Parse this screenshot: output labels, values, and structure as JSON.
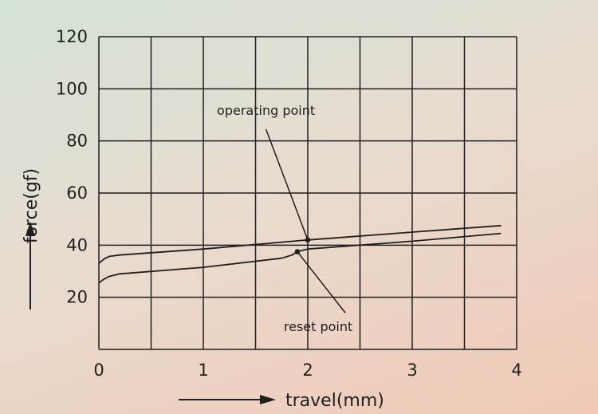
{
  "chart_data": {
    "type": "line",
    "title": "",
    "xlabel": "travel(mm)",
    "ylabel": "force(gf)",
    "xlim": [
      0,
      4
    ],
    "ylim": [
      0,
      120
    ],
    "x_ticks": [
      0,
      1,
      2,
      3,
      4
    ],
    "y_ticks": [
      20,
      40,
      60,
      80,
      100,
      120
    ],
    "x_tick_labels": [
      "0",
      "1",
      "2",
      "3",
      "4"
    ],
    "y_tick_labels": [
      "20",
      "40",
      "60",
      "80",
      "100",
      "120"
    ],
    "grid": true,
    "legend": "none",
    "series": [
      {
        "x": [
          0,
          0.05,
          0.1,
          0.2,
          1.0,
          2.0,
          3.0,
          3.85
        ],
        "y": [
          33,
          34.7,
          35.7,
          36.2,
          38.5,
          42,
          45,
          47.5
        ]
      },
      {
        "x": [
          0,
          0.05,
          0.1,
          0.2,
          1.0,
          1.75,
          1.85,
          1.9,
          2.0,
          3.0,
          3.85
        ],
        "y": [
          25.5,
          27,
          28,
          29,
          31.5,
          35,
          36.2,
          37.5,
          38.5,
          41.5,
          44.5
        ]
      }
    ],
    "points": [
      {
        "x": 2.0,
        "y": 42
      },
      {
        "x": 1.9,
        "y": 37.5
      }
    ],
    "annotations": [
      {
        "text": "operating point",
        "x": 1.6,
        "y": 90,
        "target": 0
      },
      {
        "text": "reset point",
        "x": 2.1,
        "y": 7,
        "target": 1
      }
    ]
  }
}
